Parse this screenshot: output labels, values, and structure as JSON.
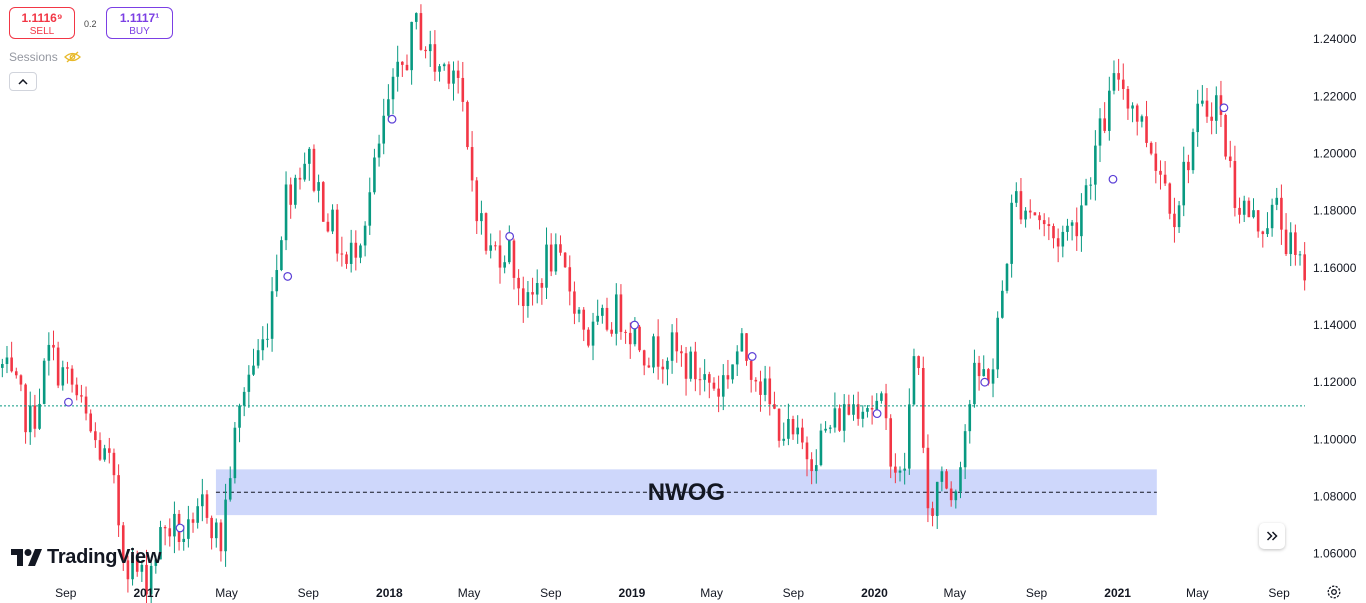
{
  "trade": {
    "sell_price": "1.1116⁹",
    "sell_label": "SELL",
    "spread": "0.2",
    "buy_price": "1.1117¹",
    "buy_label": "BUY"
  },
  "sessions_label": "Sessions",
  "logo_text": "TradingView",
  "icons": [
    "eye-off-icon",
    "chevron-up-icon",
    "tradingview-logo-icon",
    "double-chevron-right-icon",
    "gear-icon"
  ],
  "colors": {
    "up": "#089981",
    "down": "#f23645",
    "zone": "#c9d3fb",
    "current_price_line": "#089981",
    "text": "#131722",
    "axis_text": "#131722",
    "sell": "#f23645",
    "buy": "#7b3fe4"
  },
  "chart_data": {
    "type": "candlestick",
    "symbol_timeframe": "weekly",
    "current_price": 1.1117,
    "ylim": [
      1.0515,
      1.2537
    ],
    "y_ticks": [
      "1.24000",
      "1.22000",
      "1.20000",
      "1.18000",
      "1.16000",
      "1.14000",
      "1.12000",
      "1.10000",
      "1.08000",
      "1.06000"
    ],
    "x_ticks": [
      {
        "label": "Sep",
        "date": "2016-09-01",
        "bold": false
      },
      {
        "label": "2017",
        "date": "2017-01-01",
        "bold": true
      },
      {
        "label": "May",
        "date": "2017-05-01",
        "bold": false
      },
      {
        "label": "Sep",
        "date": "2017-09-01",
        "bold": false
      },
      {
        "label": "2018",
        "date": "2018-01-01",
        "bold": true
      },
      {
        "label": "May",
        "date": "2018-05-01",
        "bold": false
      },
      {
        "label": "Sep",
        "date": "2018-09-01",
        "bold": false
      },
      {
        "label": "2019",
        "date": "2019-01-01",
        "bold": true
      },
      {
        "label": "May",
        "date": "2019-05-01",
        "bold": false
      },
      {
        "label": "Sep",
        "date": "2019-09-01",
        "bold": false
      },
      {
        "label": "2020",
        "date": "2020-01-01",
        "bold": true
      },
      {
        "label": "May",
        "date": "2020-05-01",
        "bold": false
      },
      {
        "label": "Sep",
        "date": "2020-09-01",
        "bold": false
      },
      {
        "label": "2021",
        "date": "2021-01-01",
        "bold": true
      },
      {
        "label": "May",
        "date": "2021-05-01",
        "bold": false
      },
      {
        "label": "Sep",
        "date": "2021-09-01",
        "bold": false
      }
    ],
    "anchors": [
      [
        "2016-06-01",
        1.125
      ],
      [
        "2016-07-15",
        1.105
      ],
      [
        "2016-08-10",
        1.13
      ],
      [
        "2016-09-15",
        1.118
      ],
      [
        "2016-10-15",
        1.1
      ],
      [
        "2016-11-10",
        1.09
      ],
      [
        "2016-12-01",
        1.06
      ],
      [
        "2017-01-01",
        1.05
      ],
      [
        "2017-02-01",
        1.07
      ],
      [
        "2017-03-15",
        1.065
      ],
      [
        "2017-04-01",
        1.08
      ],
      [
        "2017-04-25",
        1.062
      ],
      [
        "2017-05-10",
        1.09
      ],
      [
        "2017-06-01",
        1.12
      ],
      [
        "2017-07-01",
        1.135
      ],
      [
        "2017-08-01",
        1.185
      ],
      [
        "2017-09-01",
        1.2
      ],
      [
        "2017-10-01",
        1.18
      ],
      [
        "2017-11-01",
        1.16
      ],
      [
        "2017-12-01",
        1.18
      ],
      [
        "2018-01-01",
        1.215
      ],
      [
        "2018-02-15",
        1.245
      ],
      [
        "2018-03-15",
        1.23
      ],
      [
        "2018-04-15",
        1.232
      ],
      [
        "2018-05-01",
        1.2
      ],
      [
        "2018-06-01",
        1.165
      ],
      [
        "2018-07-01",
        1.168
      ],
      [
        "2018-08-01",
        1.145
      ],
      [
        "2018-09-01",
        1.165
      ],
      [
        "2018-10-01",
        1.155
      ],
      [
        "2018-11-01",
        1.135
      ],
      [
        "2018-12-15",
        1.145
      ],
      [
        "2019-02-01",
        1.13
      ],
      [
        "2019-03-01",
        1.132
      ],
      [
        "2019-04-01",
        1.125
      ],
      [
        "2019-05-15",
        1.118
      ],
      [
        "2019-06-15",
        1.132
      ],
      [
        "2019-07-10",
        1.125
      ],
      [
        "2019-08-01",
        1.11
      ],
      [
        "2019-09-01",
        1.1
      ],
      [
        "2019-10-01",
        1.095
      ],
      [
        "2019-11-01",
        1.105
      ],
      [
        "2019-12-15",
        1.115
      ],
      [
        "2020-01-15",
        1.11
      ],
      [
        "2020-02-15",
        1.082
      ],
      [
        "2020-03-09",
        1.14
      ],
      [
        "2020-03-23",
        1.068
      ],
      [
        "2020-04-15",
        1.09
      ],
      [
        "2020-05-01",
        1.08
      ],
      [
        "2020-06-01",
        1.12
      ],
      [
        "2020-07-01",
        1.125
      ],
      [
        "2020-08-01",
        1.185
      ],
      [
        "2020-09-01",
        1.18
      ],
      [
        "2020-10-01",
        1.17
      ],
      [
        "2020-11-01",
        1.175
      ],
      [
        "2020-12-01",
        1.2
      ],
      [
        "2021-01-05",
        1.228
      ],
      [
        "2021-02-01",
        1.215
      ],
      [
        "2021-03-01",
        1.2
      ],
      [
        "2021-04-01",
        1.18
      ],
      [
        "2021-05-01",
        1.21
      ],
      [
        "2021-06-01",
        1.22
      ],
      [
        "2021-07-01",
        1.185
      ],
      [
        "2021-08-01",
        1.175
      ],
      [
        "2021-09-01",
        1.18
      ],
      [
        "2021-10-01",
        1.16
      ]
    ],
    "session_markers": [
      [
        "2016-09-05",
        1.113
      ],
      [
        "2017-02-20",
        1.069
      ],
      [
        "2017-08-01",
        1.157
      ],
      [
        "2018-01-05",
        1.212
      ],
      [
        "2018-07-01",
        1.171
      ],
      [
        "2019-01-05",
        1.14
      ],
      [
        "2019-07-01",
        1.129
      ],
      [
        "2020-01-05",
        1.109
      ],
      [
        "2020-06-15",
        1.12
      ],
      [
        "2020-12-25",
        1.191
      ],
      [
        "2021-06-10",
        1.216
      ]
    ],
    "zone": {
      "label": "NWOG",
      "x_start": "2017-04-15",
      "x_end": "2021-03-01",
      "y_low": 1.0735,
      "y_high": 1.0895,
      "mid": 1.0815
    }
  }
}
